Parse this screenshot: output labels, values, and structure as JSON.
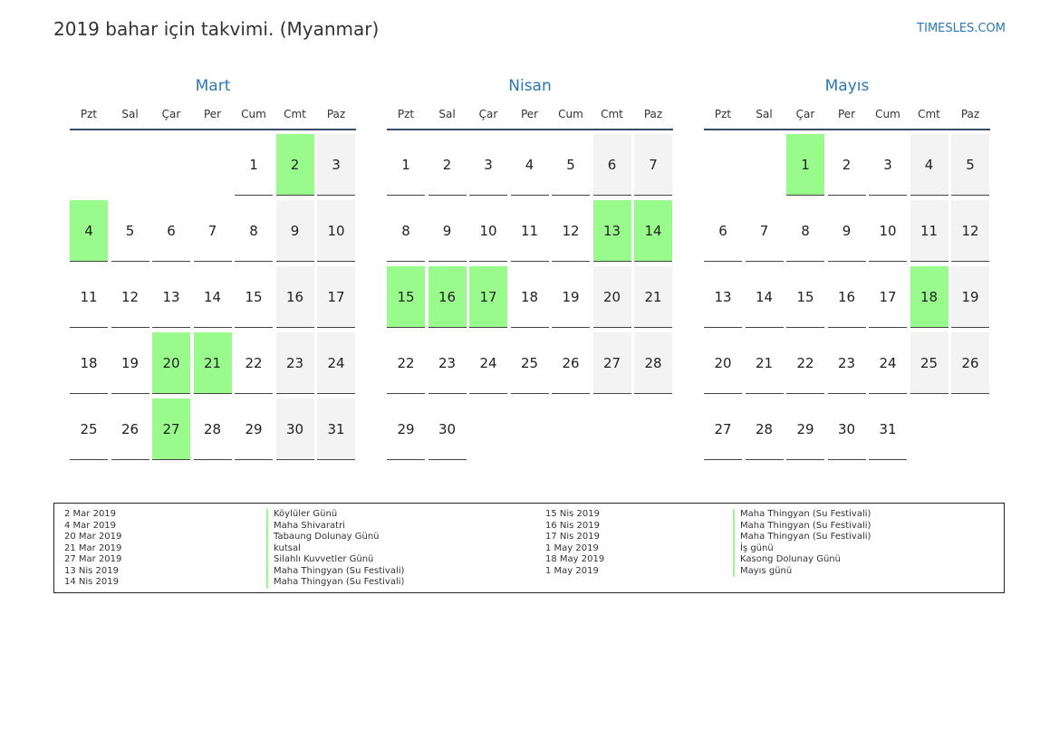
{
  "header": {
    "title": "2019 bahar için takvimi. (Myanmar)",
    "site": "TIMESLES.COM"
  },
  "colors": {
    "accent": "#2a77b8",
    "holiday": "#98fb8c",
    "weekend": "#f3f3f3"
  },
  "weekdays": [
    "Pzt",
    "Sal",
    "Çar",
    "Per",
    "Cum",
    "Cmt",
    "Paz"
  ],
  "months": [
    {
      "name": "Mart",
      "start_offset": 4,
      "days": 31,
      "holidays": [
        2,
        4,
        20,
        21,
        27
      ]
    },
    {
      "name": "Nisan",
      "start_offset": 0,
      "days": 30,
      "holidays": [
        13,
        14,
        15,
        16,
        17
      ]
    },
    {
      "name": "Mayıs",
      "start_offset": 2,
      "days": 31,
      "holidays": [
        1,
        18
      ]
    }
  ],
  "legend": {
    "left_dates": [
      "2 Mar 2019",
      "4 Mar 2019",
      "20 Mar 2019",
      "21 Mar 2019",
      "27 Mar 2019",
      "13 Nis 2019",
      "14 Nis 2019"
    ],
    "left_names": [
      "Köylüler Günü",
      "Maha Shivaratri",
      "Tabaung Dolunay Günü",
      "kutsal",
      "Silahlı Kuvvetler Günü",
      "Maha Thingyan (Su Festivali)",
      "Maha Thingyan (Su Festivali)"
    ],
    "right_dates": [
      "15 Nis 2019",
      "16 Nis 2019",
      "17 Nis 2019",
      "1 May 2019",
      "18 May 2019",
      "1 May 2019"
    ],
    "right_names": [
      "Maha Thingyan (Su Festivali)",
      "Maha Thingyan (Su Festivali)",
      "Maha Thingyan (Su Festivali)",
      "İş günü",
      "Kasong Dolunay Günü",
      "Mayıs günü"
    ]
  }
}
